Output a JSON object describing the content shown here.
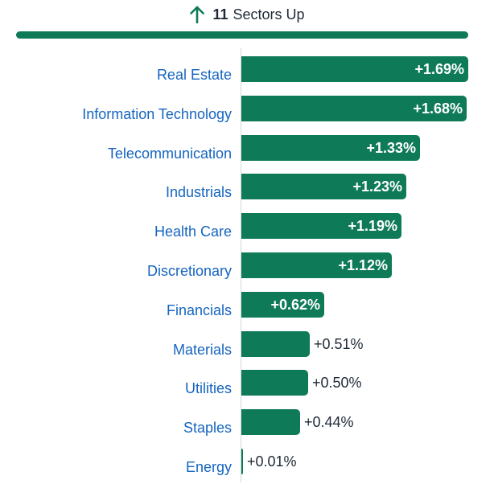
{
  "header": {
    "count": "11",
    "label": "Sectors Up",
    "icon": "arrow-up-icon",
    "accent": "#0e7a58"
  },
  "colors": {
    "bar": "#0e7a58",
    "category_label": "#1565c0",
    "value_label_outside": "#1f2937",
    "value_label_inside": "#ffffff"
  },
  "chart_data": {
    "type": "bar",
    "orientation": "horizontal",
    "title": "",
    "xlabel": "",
    "ylabel": "",
    "xlim": [
      0,
      1.69
    ],
    "grid": false,
    "categories": [
      "Real Estate",
      "Information Technology",
      "Telecommunication",
      "Industrials",
      "Health Care",
      "Discretionary",
      "Financials",
      "Materials",
      "Utilities",
      "Staples",
      "Energy"
    ],
    "values": [
      1.69,
      1.68,
      1.33,
      1.23,
      1.19,
      1.12,
      0.62,
      0.51,
      0.5,
      0.44,
      0.01
    ],
    "value_labels": [
      "+1.69%",
      "+1.68%",
      "+1.33%",
      "+1.23%",
      "+1.19%",
      "+1.12%",
      "+0.62%",
      "+0.51%",
      "+0.50%",
      "+0.44%",
      "+0.01%"
    ]
  }
}
